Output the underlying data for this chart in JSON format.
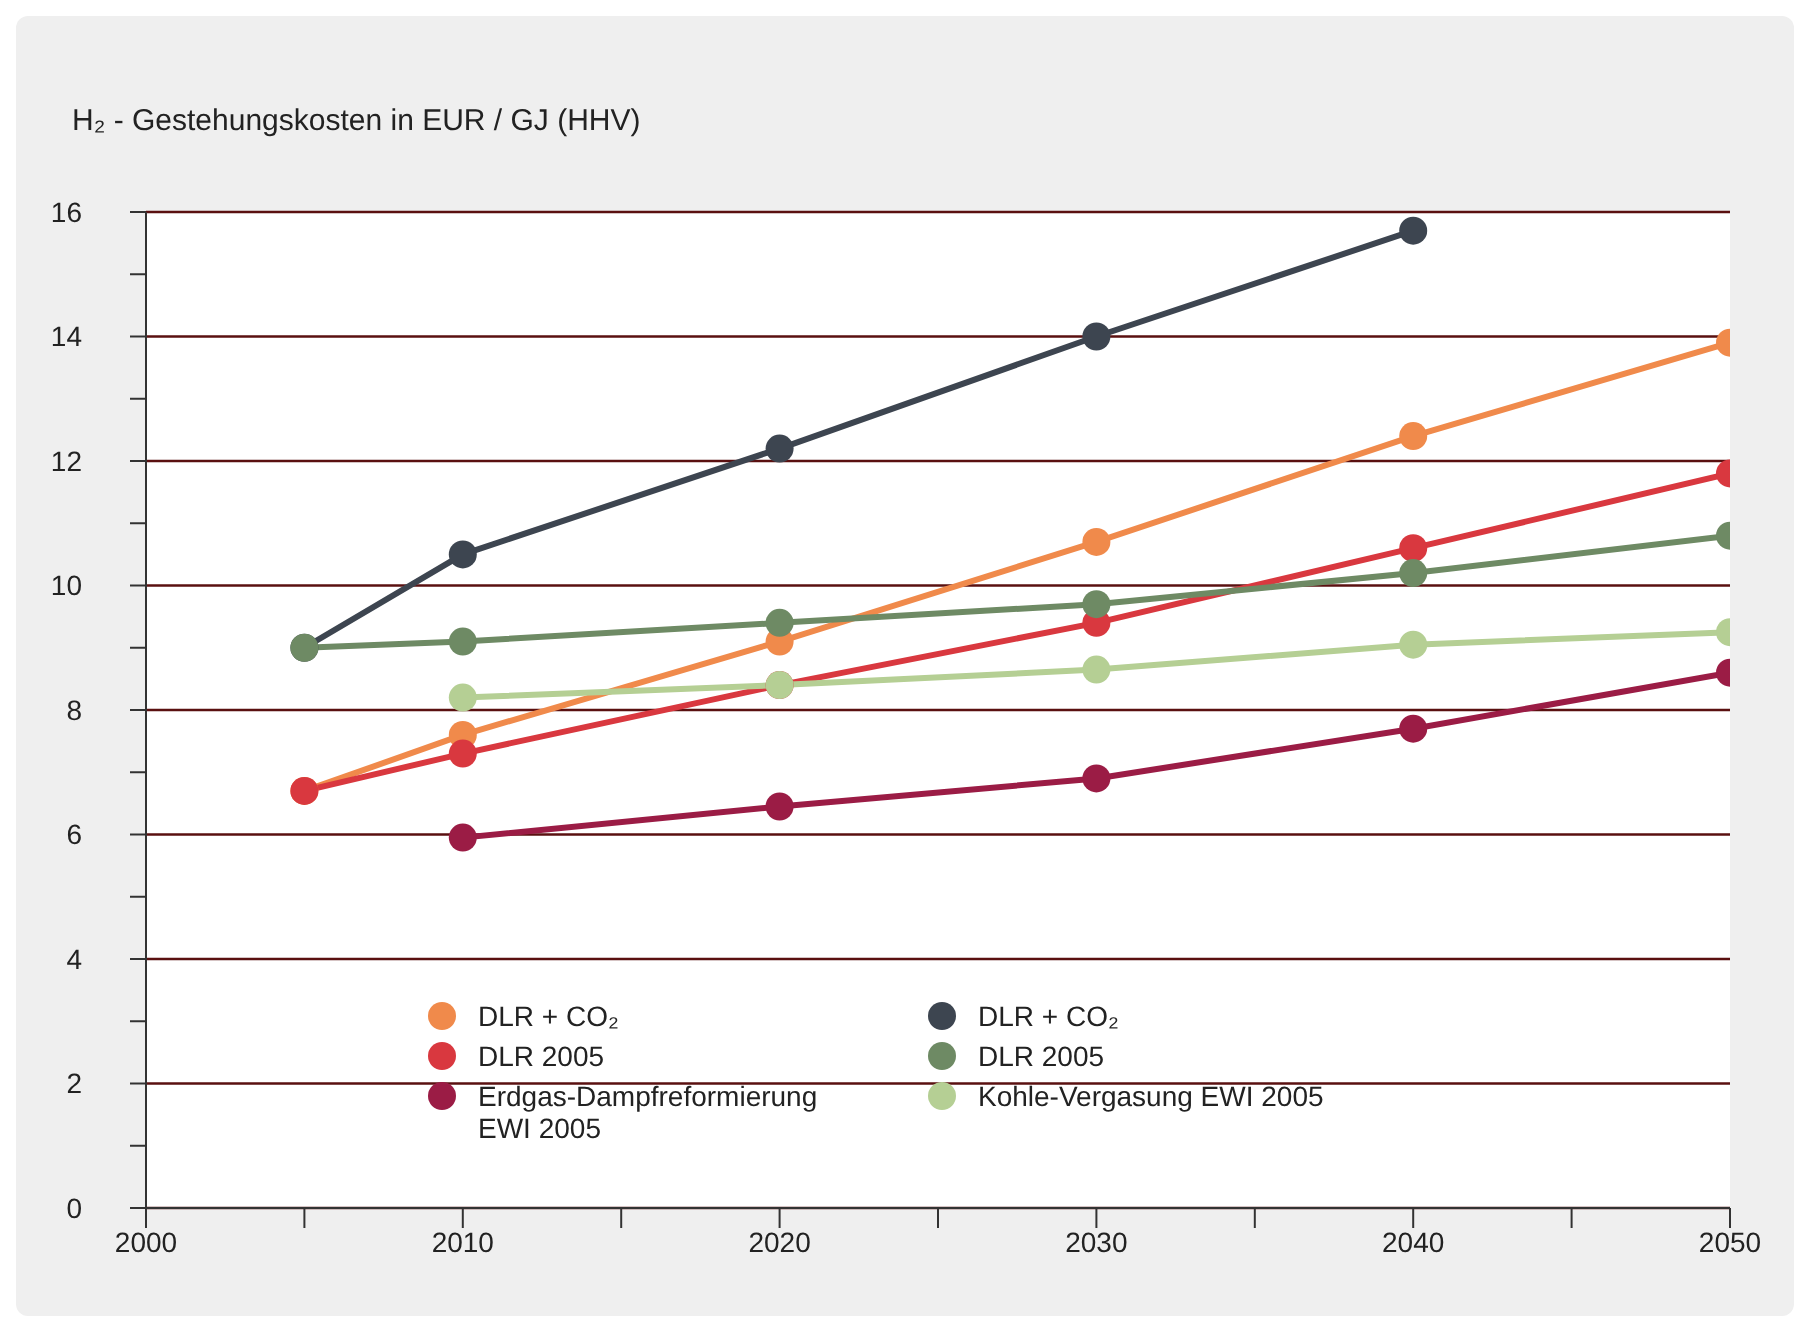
{
  "chart_data": {
    "type": "line",
    "title": "H₂ - Gestehungskosten in EUR / GJ (HHV)",
    "x": [
      2005,
      2010,
      2020,
      2030,
      2040,
      2050
    ],
    "series": [
      {
        "name": "DLR + CO₂",
        "color": "#f08a4b",
        "values": [
          6.7,
          7.6,
          9.1,
          10.7,
          12.4,
          13.9
        ]
      },
      {
        "name": "DLR 2005",
        "color": "#d9383f",
        "values": [
          6.7,
          7.3,
          8.4,
          9.4,
          10.6,
          11.8
        ]
      },
      {
        "name": "Erdgas-Dampfreformierung EWI 2005",
        "color": "#9b1c45",
        "values": [
          null,
          5.95,
          6.45,
          6.9,
          7.7,
          8.6
        ]
      },
      {
        "name": "DLR + CO₂",
        "color": "#3d4550",
        "values": [
          9.0,
          10.5,
          12.2,
          14.0,
          15.7,
          null
        ]
      },
      {
        "name": "DLR 2005",
        "color": "#6e8a64",
        "values": [
          9.0,
          9.1,
          9.4,
          9.7,
          10.2,
          10.8
        ]
      },
      {
        "name": "Kohle-Vergasung EWI 2005",
        "color": "#b5cf94",
        "values": [
          null,
          8.2,
          8.4,
          8.65,
          9.05,
          9.25
        ]
      }
    ],
    "xlim": [
      2000,
      2050
    ],
    "xticks": [
      2000,
      {
        "value": 2005,
        "label": null
      },
      2010,
      {
        "value": 2015,
        "label": null
      },
      2020,
      {
        "value": 2025,
        "label": null
      },
      2030,
      {
        "value": 2035,
        "label": null
      },
      2040,
      {
        "value": 2045,
        "label": null
      },
      2050
    ],
    "ylim": [
      0,
      16
    ],
    "yticks": [
      0,
      {
        "value": 1,
        "label": null
      },
      2,
      {
        "value": 3,
        "label": null
      },
      4,
      {
        "value": 5,
        "label": null
      },
      6,
      {
        "value": 7,
        "label": null
      },
      8,
      {
        "value": 9,
        "label": null
      },
      10,
      {
        "value": 11,
        "label": null
      },
      12,
      {
        "value": 13,
        "label": null
      },
      14,
      {
        "value": 15,
        "label": null
      },
      16
    ],
    "grid": "y",
    "legend": "bottom",
    "marker": "circle",
    "line_style": "solid"
  }
}
